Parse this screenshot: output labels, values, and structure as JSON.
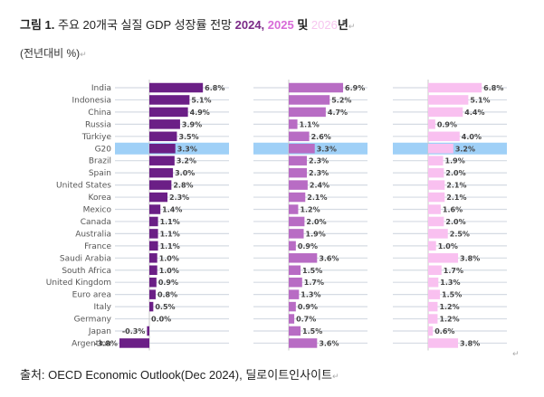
{
  "title": {
    "prefix": "그림 1.",
    "text": " 주요 20개국 실질 GDP 성장률 전망 ",
    "year1": "2024",
    "sep": ", ",
    "year2": "2025",
    "and": " 및 ",
    "year3": "2026",
    "suffix": "년",
    "colors": {
      "year1": "#7b2a87",
      "year2": "#d86ad8",
      "year3": "#f7c6ef"
    }
  },
  "subtitle": "(전년대비 %)",
  "source": "출처: OECD Economic Outlook(Dec 2024), 딜로이트인사이트",
  "paragraph_mark": "↵",
  "chart_data": {
    "type": "bar",
    "orientation": "horizontal",
    "title": "주요 20개국 실질 GDP 성장률 전망 2024, 2025 및 2026년",
    "xlabel": "",
    "ylabel": "(전년대비 %)",
    "categories": [
      "India",
      "Indonesia",
      "China",
      "Russia",
      "Türkiye",
      "G20",
      "Brazil",
      "Spain",
      "United States",
      "Korea",
      "Mexico",
      "Canada",
      "Australia",
      "France",
      "Saudi Arabia",
      "South Africa",
      "United Kingdom",
      "Euro area",
      "Italy",
      "Germany",
      "Japan",
      "Argentina"
    ],
    "highlight_category": "G20",
    "highlight_color": "#9fd0f7",
    "series": [
      {
        "name": "2024",
        "color": "#6b1f86",
        "values": [
          6.8,
          5.1,
          4.9,
          3.9,
          3.5,
          3.3,
          3.2,
          3.0,
          2.8,
          2.3,
          1.4,
          1.1,
          1.1,
          1.1,
          1.0,
          1.0,
          0.9,
          0.8,
          0.5,
          0.0,
          -0.3,
          -3.8
        ]
      },
      {
        "name": "2025",
        "color": "#b86cc4",
        "values": [
          6.9,
          5.2,
          4.7,
          1.1,
          2.6,
          3.3,
          2.3,
          2.3,
          2.4,
          2.1,
          1.2,
          2.0,
          1.9,
          0.9,
          3.6,
          1.5,
          1.7,
          1.3,
          0.9,
          0.7,
          1.5,
          3.6
        ]
      },
      {
        "name": "2026",
        "color": "#f9c0f0",
        "values": [
          6.8,
          5.1,
          4.4,
          0.9,
          4.0,
          3.2,
          1.9,
          2.0,
          2.1,
          2.1,
          1.6,
          2.0,
          2.5,
          1.0,
          3.8,
          1.7,
          1.3,
          1.5,
          1.2,
          1.2,
          0.6,
          3.8
        ]
      }
    ],
    "value_suffix": "%",
    "grid": true,
    "legend": "none"
  }
}
